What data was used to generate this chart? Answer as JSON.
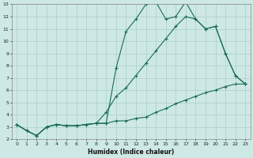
{
  "xlabel": "Humidex (Indice chaleur)",
  "xlim": [
    -0.5,
    23.5
  ],
  "ylim": [
    2,
    13
  ],
  "yticks": [
    2,
    3,
    4,
    5,
    6,
    7,
    8,
    9,
    10,
    11,
    12,
    13
  ],
  "xticks": [
    0,
    1,
    2,
    3,
    4,
    5,
    6,
    7,
    8,
    9,
    10,
    11,
    12,
    13,
    14,
    15,
    16,
    17,
    18,
    19,
    20,
    21,
    22,
    23
  ],
  "bg_color": "#cde8e5",
  "line_color": "#1a6b5a",
  "grid_color": "#aacfcc",
  "line1_x": [
    0,
    1,
    2,
    3,
    4,
    5,
    6,
    7,
    8,
    9,
    10,
    11,
    12,
    13,
    14,
    15,
    16,
    17,
    18,
    19,
    20,
    21,
    22,
    23
  ],
  "line1_y": [
    3.2,
    2.7,
    2.3,
    3.0,
    3.2,
    3.1,
    3.1,
    3.2,
    3.3,
    3.3,
    7.8,
    10.8,
    11.8,
    13.0,
    13.2,
    11.8,
    12.0,
    13.2,
    11.8,
    11.0,
    11.2,
    9.0,
    7.2,
    6.5
  ],
  "line2_x": [
    0,
    1,
    2,
    3,
    4,
    5,
    6,
    7,
    8,
    9,
    10,
    11,
    12,
    13,
    14,
    15,
    16,
    17,
    18,
    19,
    20,
    21,
    22,
    23
  ],
  "line2_y": [
    3.2,
    2.7,
    2.3,
    3.0,
    3.2,
    3.1,
    3.1,
    3.2,
    3.3,
    3.3,
    3.5,
    3.5,
    3.7,
    3.8,
    4.2,
    4.5,
    4.9,
    5.2,
    5.5,
    5.8,
    6.0,
    6.3,
    6.5,
    6.5
  ],
  "line3_x": [
    0,
    1,
    2,
    3,
    4,
    5,
    6,
    7,
    8,
    9,
    10,
    11,
    12,
    13,
    14,
    15,
    16,
    17,
    18,
    19,
    20,
    21,
    22,
    23
  ],
  "line3_y": [
    3.2,
    2.7,
    2.3,
    3.0,
    3.2,
    3.1,
    3.1,
    3.2,
    3.3,
    4.2,
    5.5,
    6.2,
    7.2,
    8.2,
    9.2,
    10.2,
    11.2,
    12.0,
    11.8,
    11.0,
    11.2,
    9.0,
    7.2,
    6.5
  ]
}
